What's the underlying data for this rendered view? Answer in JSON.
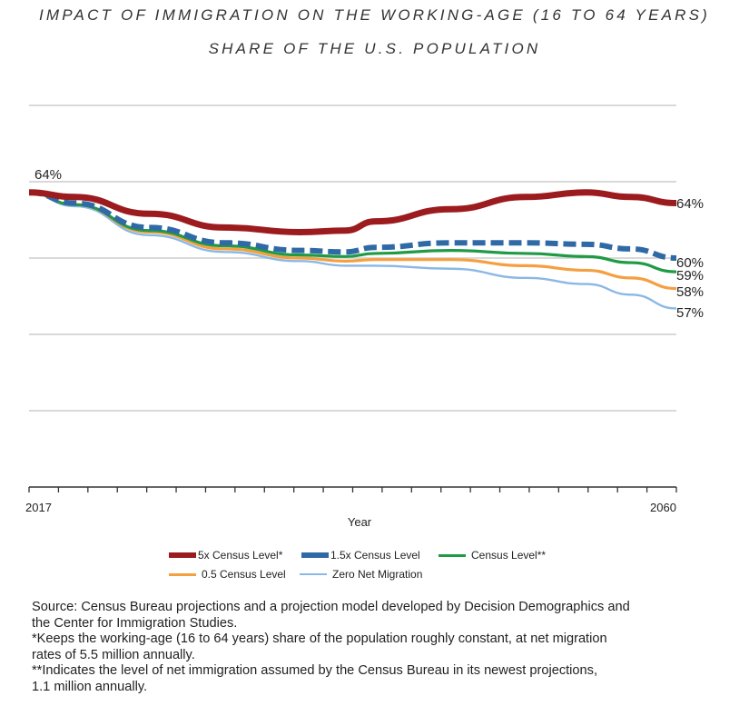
{
  "chart_data": {
    "type": "line",
    "title": "IMPACT OF IMMIGRATION ON THE WORKING-AGE (16 TO 64 YEARS)",
    "subtitle": "SHARE OF THE U.S. POPULATION",
    "xlabel": "Year",
    "ylabel": "",
    "xlim": [
      2017,
      2060
    ],
    "ylim": [
      45,
      70
    ],
    "x_tick_labels": [
      "2017",
      "2060"
    ],
    "y_gridlines": [
      50,
      55,
      60,
      65,
      70
    ],
    "grid": true,
    "legend_position": "bottom",
    "x": [
      2017,
      2020,
      2025,
      2030,
      2035,
      2038,
      2040,
      2045,
      2050,
      2054,
      2057,
      2060
    ],
    "series": [
      {
        "name": "5x Census Level*",
        "color": "#9b1b1e",
        "style": "solid-thick",
        "values": [
          64.3,
          64.0,
          62.9,
          62.0,
          61.7,
          61.8,
          62.4,
          63.2,
          64.0,
          64.3,
          64.0,
          63.6
        ],
        "end_label": "64%"
      },
      {
        "name": "1.5x Census Level",
        "color": "#2f6aa6",
        "style": "dashed",
        "values": [
          64.3,
          63.6,
          62.0,
          61.0,
          60.5,
          60.4,
          60.7,
          61.0,
          61.0,
          60.9,
          60.6,
          60.0
        ],
        "end_label": "60%"
      },
      {
        "name": "Census Level**",
        "color": "#1f9a45",
        "style": "solid",
        "values": [
          64.3,
          63.5,
          61.8,
          60.8,
          60.2,
          60.1,
          60.3,
          60.5,
          60.3,
          60.1,
          59.7,
          59.1
        ],
        "end_label": "59%"
      },
      {
        "name": "0.5 Census Level",
        "color": "#f4a040",
        "style": "solid",
        "values": [
          64.3,
          63.5,
          61.7,
          60.6,
          60.0,
          59.8,
          59.9,
          59.9,
          59.5,
          59.2,
          58.7,
          58.0
        ],
        "end_label": "58%"
      },
      {
        "name": "Zero Net Migration",
        "color": "#8ab8e6",
        "style": "solid-thin",
        "values": [
          64.3,
          63.4,
          61.5,
          60.4,
          59.8,
          59.5,
          59.5,
          59.3,
          58.7,
          58.3,
          57.6,
          56.7
        ],
        "end_label": "57%"
      }
    ],
    "annotations": [
      {
        "text": "64%",
        "at": "start"
      }
    ]
  },
  "notes": [
    "Source: Census Bureau projections and a projection model developed by Decision Demographics and",
    "the Center for Immigration Studies.",
    "*Keeps the working-age (16 to 64 years) share of the population roughly constant, at net migration",
    "rates of 5.5 million annually.",
    "**Indicates the level of net immigration assumed by the Census Bureau in its newest projections,",
    "1.1 million annually."
  ]
}
